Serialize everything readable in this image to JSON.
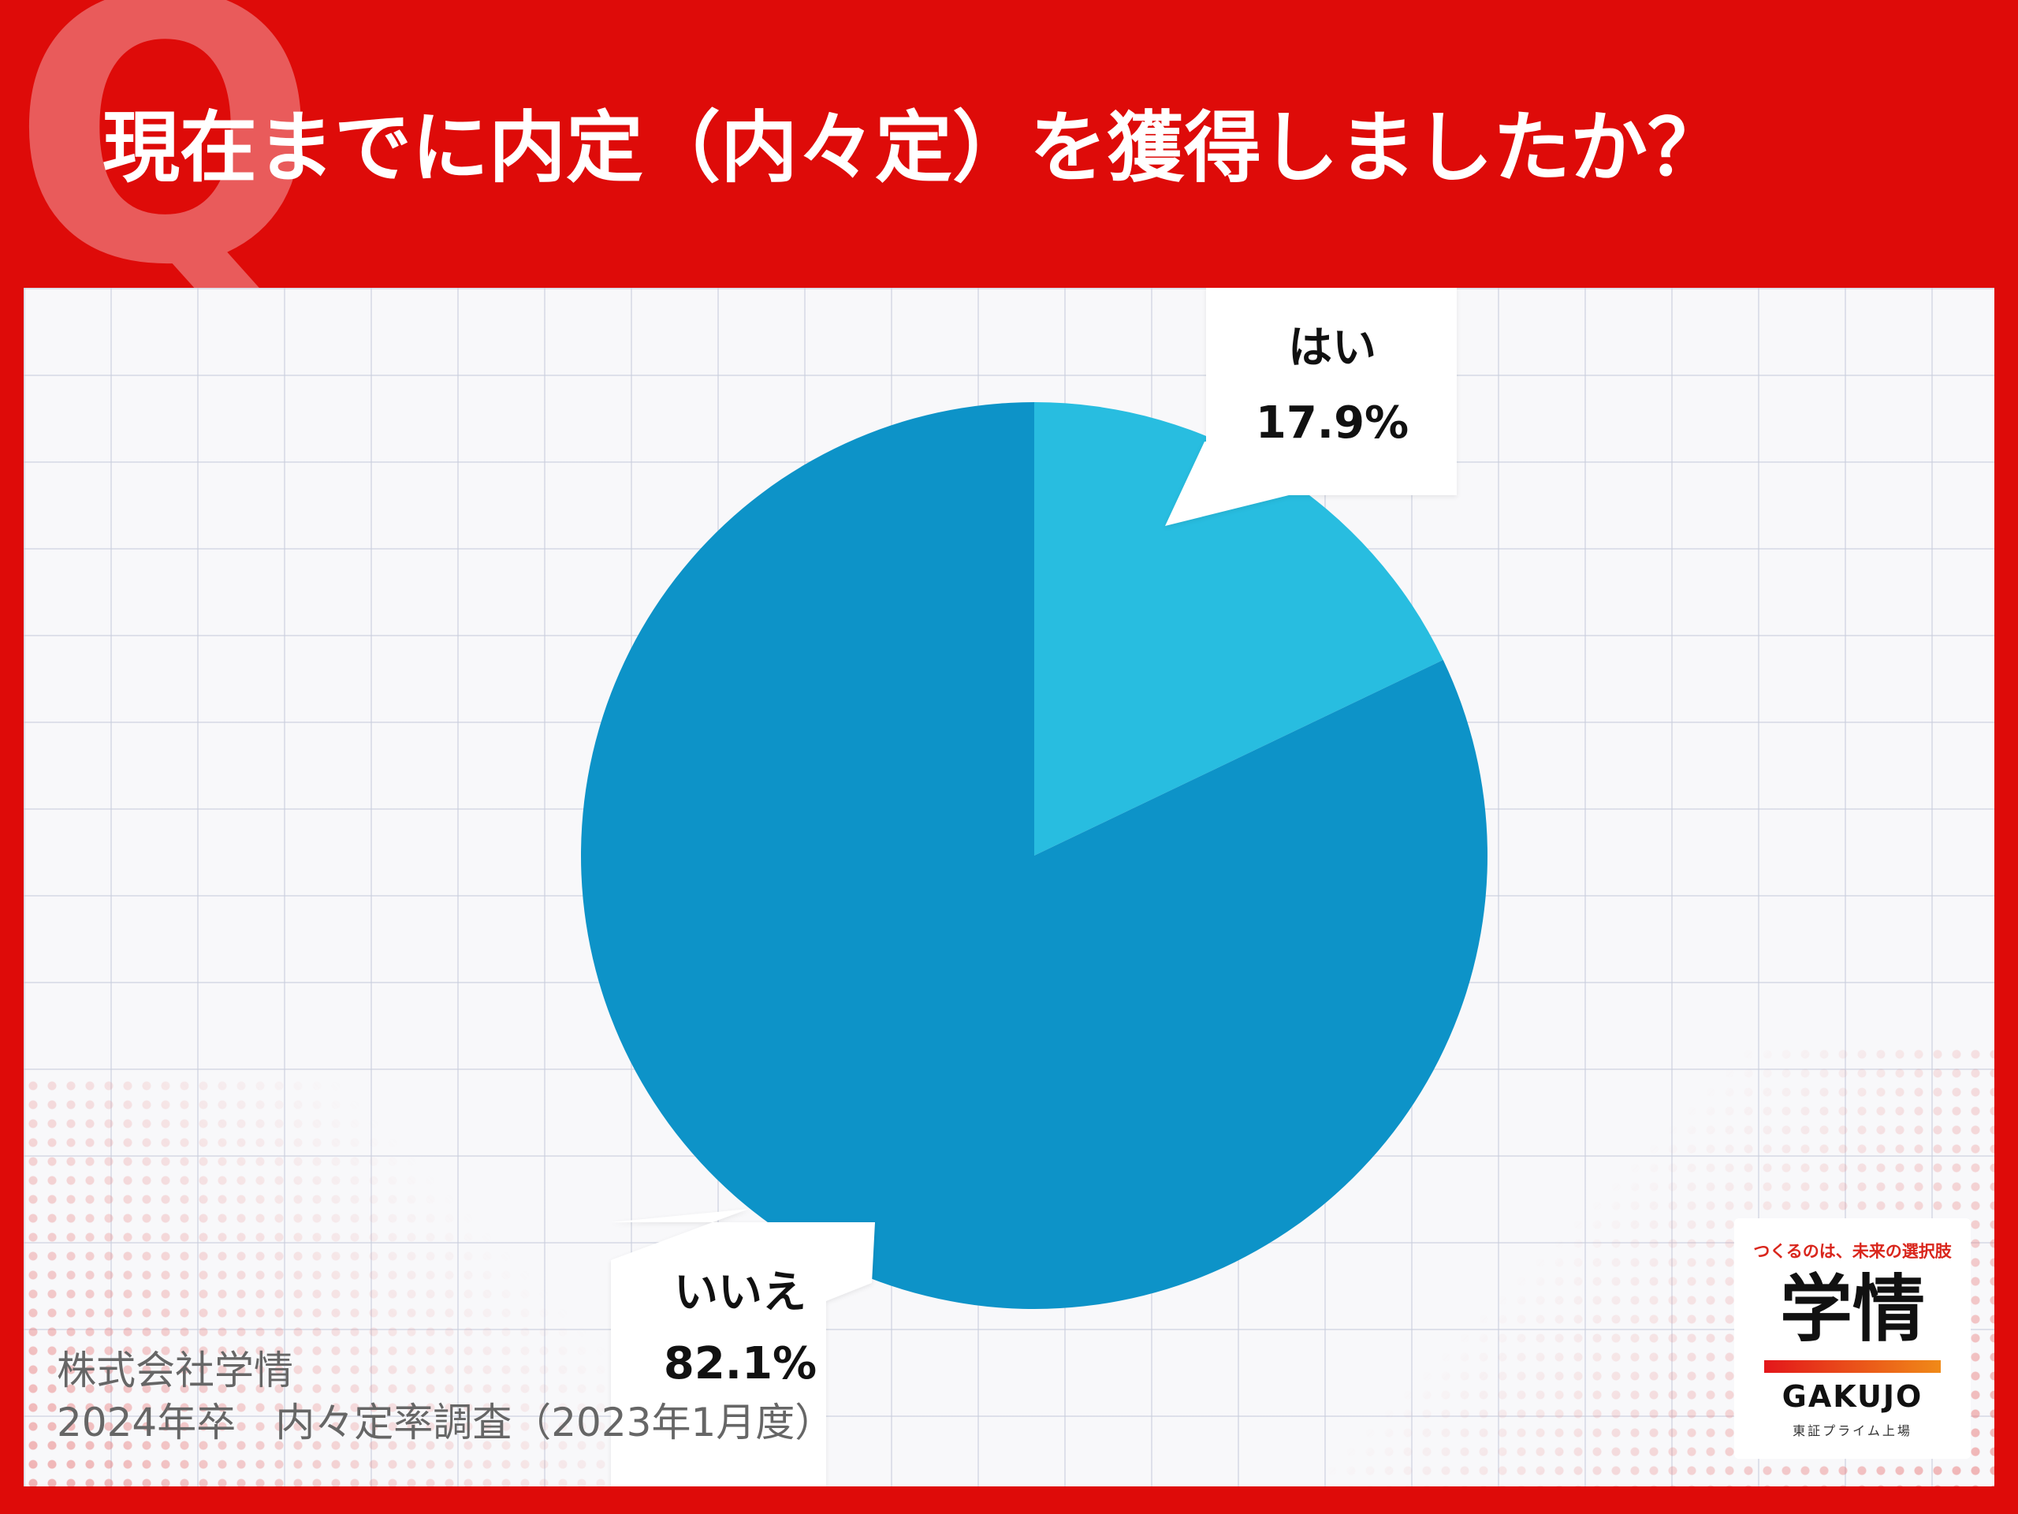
{
  "header": {
    "q_letter": "Q",
    "question": "現在までに内定（内々定）を獲得しましたか？"
  },
  "chart_data": {
    "type": "pie",
    "title": "現在までに内定（内々定）を獲得しましたか？",
    "slices": [
      {
        "label": "はい",
        "value": 17.9,
        "value_label": "17.9%",
        "color": "#28BDE0"
      },
      {
        "label": "いいえ",
        "value": 82.1,
        "value_label": "82.1%",
        "color": "#0D93C8"
      }
    ]
  },
  "source": {
    "company": "株式会社学情",
    "survey": "2024年卒　内々定率調査（2023年1月度）"
  },
  "logo": {
    "tagline": "つくるのは、未来の選択肢",
    "kanji": "学情",
    "wordmark": "GAKUJO",
    "listing": "東証プライム上場"
  }
}
